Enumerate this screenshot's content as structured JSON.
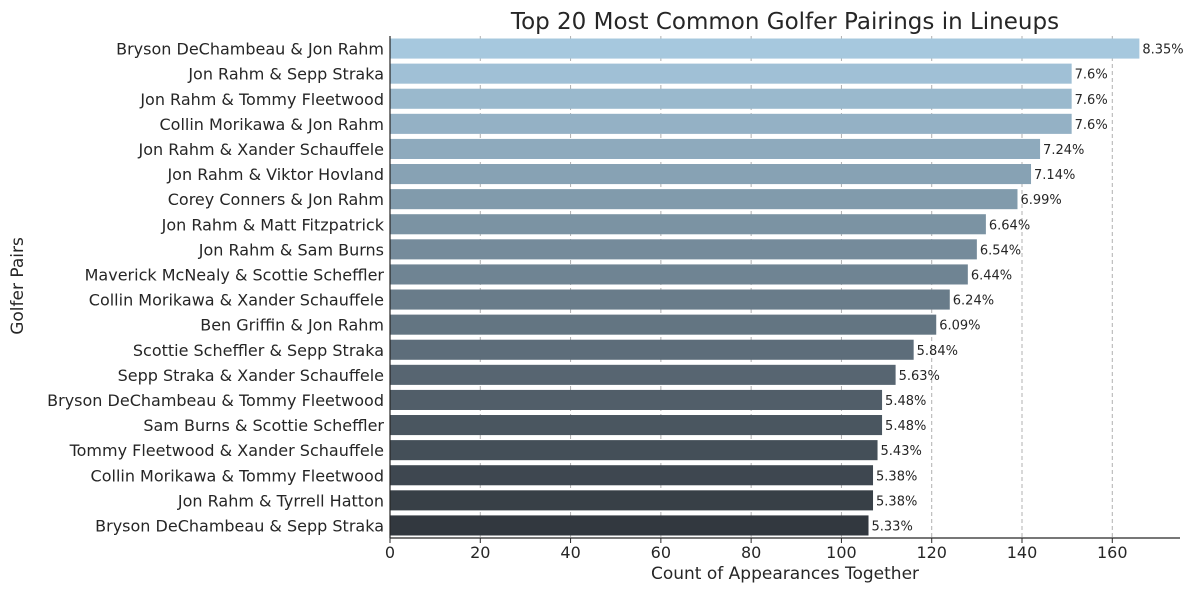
{
  "chart_data": {
    "type": "bar",
    "orientation": "horizontal",
    "title": "Top 20 Most Common Golfer Pairings in Lineups",
    "xlabel": "Count of Appearances Together",
    "ylabel": "Golfer Pairs",
    "xlim": [
      0,
      175
    ],
    "xticks": [
      0,
      20,
      40,
      60,
      80,
      100,
      120,
      140,
      160
    ],
    "grid": "x-dashed",
    "colors": {
      "start": "#a6c8de",
      "end": "#32383f"
    },
    "categories": [
      "Bryson DeChambeau & Jon Rahm",
      "Jon Rahm & Sepp Straka",
      "Jon Rahm & Tommy Fleetwood",
      "Collin Morikawa & Jon Rahm",
      "Jon Rahm & Xander Schauffele",
      "Jon Rahm & Viktor Hovland",
      "Corey Conners & Jon Rahm",
      "Jon Rahm & Matt Fitzpatrick",
      "Jon Rahm & Sam Burns",
      "Maverick McNealy & Scottie Scheffler",
      "Collin Morikawa & Xander Schauffele",
      "Ben Griffin & Jon Rahm",
      "Scottie Scheffler & Sepp Straka",
      "Sepp Straka & Xander Schauffele",
      "Bryson DeChambeau & Tommy Fleetwood",
      "Sam Burns & Scottie Scheffler",
      "Tommy Fleetwood & Xander Schauffele",
      "Collin Morikawa & Tommy Fleetwood",
      "Jon Rahm & Tyrrell Hatton",
      "Bryson DeChambeau & Sepp Straka"
    ],
    "values": [
      166,
      151,
      151,
      151,
      144,
      142,
      139,
      132,
      130,
      128,
      124,
      121,
      116,
      112,
      109,
      109,
      108,
      107,
      107,
      106
    ],
    "data_labels": [
      "8.35%",
      "7.6%",
      "7.6%",
      "7.6%",
      "7.24%",
      "7.14%",
      "6.99%",
      "6.64%",
      "6.54%",
      "6.44%",
      "6.24%",
      "6.09%",
      "5.84%",
      "5.63%",
      "5.48%",
      "5.48%",
      "5.43%",
      "5.38%",
      "5.38%",
      "5.33%"
    ]
  }
}
